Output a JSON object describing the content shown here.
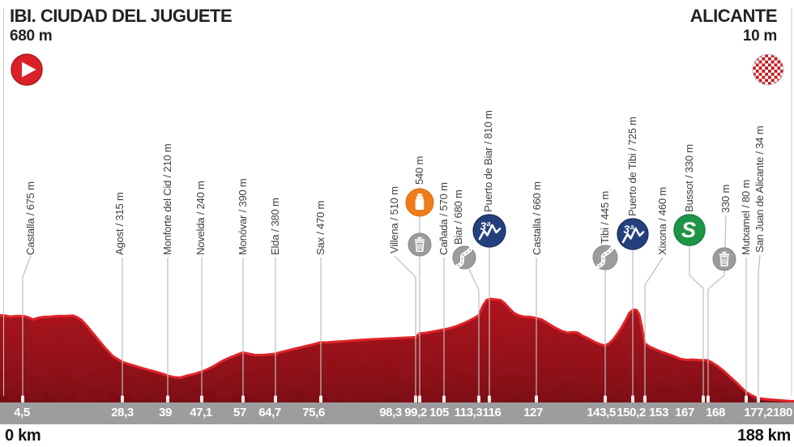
{
  "header": {
    "start": {
      "name": "IBI. CIUDAD DEL JUGUETE",
      "elevation": "680 m"
    },
    "finish": {
      "name": "ALICANTE",
      "elevation": "10 m"
    }
  },
  "footer": {
    "start_label": "0 km",
    "finish_label": "188 km"
  },
  "colors": {
    "profile_edge": "#e0242b",
    "profile_fill_top": "#c01318",
    "profile_fill_bottom": "#740a0e",
    "km_bar": "#9d9d9d",
    "connector_line": "#bdbdbd",
    "cat3_blue": "#24407e",
    "sprint_green": "#1e9447",
    "feed_orange": "#ef7c1b",
    "icon_gray": "#9c9c9c",
    "start_red": "#da2128",
    "checker_red": "#c41a1f"
  },
  "chart_data": {
    "type": "area",
    "title": "Ibi. Ciudad del Juguete - Alicante stage elevation profile",
    "x_unit": "km",
    "y_unit": "m",
    "xlim": [
      0,
      188
    ],
    "ylim": [
      0,
      810
    ],
    "total_distance_km": 188,
    "start_elevation_m": 680,
    "finish_elevation_m": 10,
    "km_ticks": [
      "4,5",
      "28,3",
      "39",
      "47,1",
      "57",
      "64,7",
      "75,6",
      "98,3",
      "99,2",
      "105",
      "113,3",
      "116",
      "127",
      "143,5",
      "150,2",
      "153",
      "167",
      "168",
      "177,2",
      "180"
    ],
    "waypoints": [
      {
        "label": "Castalla / 675 m",
        "km": 4.5,
        "elevation_m": 675,
        "icons": []
      },
      {
        "label": "Agost / 315 m",
        "km": 28.3,
        "elevation_m": 315,
        "icons": []
      },
      {
        "label": "Monforte del Cid / 210 m",
        "km": 39,
        "elevation_m": 210,
        "icons": []
      },
      {
        "label": "Novelda / 240 m",
        "km": 47.1,
        "elevation_m": 240,
        "icons": []
      },
      {
        "label": "Monóvar / 390 m",
        "km": 57,
        "elevation_m": 390,
        "icons": []
      },
      {
        "label": "Elda / 380 m",
        "km": 64.7,
        "elevation_m": 380,
        "icons": []
      },
      {
        "label": "Sax / 470 m",
        "km": 75.6,
        "elevation_m": 470,
        "icons": []
      },
      {
        "label": "Villena / 510 m",
        "km": 98.3,
        "elevation_m": 510,
        "icons": []
      },
      {
        "label": "540 m",
        "km": 99.2,
        "elevation_m": 540,
        "icons": [
          "feed-zone",
          "litter-zone"
        ]
      },
      {
        "label": "Cañada / 570 m",
        "km": 105,
        "elevation_m": 570,
        "icons": []
      },
      {
        "label": "Biar / 680 m",
        "km": 113.3,
        "elevation_m": 680,
        "icons": [
          "winding-road"
        ]
      },
      {
        "label": "Puerto de Biar / 810 m",
        "km": 116,
        "elevation_m": 810,
        "icons": [
          "category-3-climb"
        ]
      },
      {
        "label": "Castalla / 660 m",
        "km": 127,
        "elevation_m": 660,
        "icons": []
      },
      {
        "label": "Tibi / 445 m",
        "km": 143.5,
        "elevation_m": 445,
        "icons": [
          "winding-road"
        ]
      },
      {
        "label": "Puerto de Tibi / 725 m",
        "km": 150.2,
        "elevation_m": 725,
        "icons": [
          "category-3-climb"
        ]
      },
      {
        "label": "Xixona / 460 m",
        "km": 153,
        "elevation_m": 460,
        "icons": []
      },
      {
        "label": "Bussot / 330 m",
        "km": 167,
        "elevation_m": 330,
        "icons": [
          "intermediate-sprint"
        ]
      },
      {
        "label": "330 m",
        "km": 168,
        "elevation_m": 330,
        "icons": [
          "litter-zone"
        ]
      },
      {
        "label": "Mutxamel / 80 m",
        "km": 177.2,
        "elevation_m": 80,
        "icons": []
      },
      {
        "label": "San Juan de Alicante / 34 m",
        "km": 180,
        "elevation_m": 34,
        "icons": []
      }
    ],
    "profile": [
      [
        0,
        680
      ],
      [
        1.5,
        670
      ],
      [
        3,
        676
      ],
      [
        4.5,
        675
      ],
      [
        5.5,
        668
      ],
      [
        7,
        648
      ],
      [
        8,
        660
      ],
      [
        9.5,
        668
      ],
      [
        11,
        670
      ],
      [
        13,
        675
      ],
      [
        15,
        676
      ],
      [
        16.5,
        679
      ],
      [
        17.3,
        668
      ],
      [
        18.5,
        645
      ],
      [
        20,
        590
      ],
      [
        22,
        510
      ],
      [
        24,
        430
      ],
      [
        26,
        360
      ],
      [
        28.3,
        315
      ],
      [
        30,
        298
      ],
      [
        32,
        278
      ],
      [
        34,
        258
      ],
      [
        36,
        242
      ],
      [
        38,
        222
      ],
      [
        39,
        210
      ],
      [
        40.5,
        198
      ],
      [
        42,
        193
      ],
      [
        44,
        212
      ],
      [
        45.5,
        222
      ],
      [
        47.1,
        240
      ],
      [
        48.5,
        258
      ],
      [
        50,
        282
      ],
      [
        52,
        322
      ],
      [
        54,
        352
      ],
      [
        56,
        378
      ],
      [
        57,
        390
      ],
      [
        58.5,
        380
      ],
      [
        60,
        370
      ],
      [
        62,
        372
      ],
      [
        64.7,
        380
      ],
      [
        66,
        392
      ],
      [
        68,
        408
      ],
      [
        70,
        424
      ],
      [
        72,
        440
      ],
      [
        74,
        455
      ],
      [
        75.6,
        470
      ],
      [
        77,
        468
      ],
      [
        79,
        474
      ],
      [
        81,
        478
      ],
      [
        84,
        486
      ],
      [
        87,
        492
      ],
      [
        90,
        497
      ],
      [
        93,
        502
      ],
      [
        96,
        506
      ],
      [
        98.3,
        510
      ],
      [
        99.2,
        540
      ],
      [
        100.5,
        543
      ],
      [
        102,
        551
      ],
      [
        103.5,
        560
      ],
      [
        105,
        570
      ],
      [
        106.5,
        580
      ],
      [
        108,
        596
      ],
      [
        110,
        622
      ],
      [
        112,
        655
      ],
      [
        113.3,
        680
      ],
      [
        114.3,
        755
      ],
      [
        115.2,
        800
      ],
      [
        116,
        810
      ],
      [
        117,
        806
      ],
      [
        118.5,
        800
      ],
      [
        119.5,
        775
      ],
      [
        120.5,
        740
      ],
      [
        121.5,
        705
      ],
      [
        122.5,
        685
      ],
      [
        124,
        670
      ],
      [
        125.5,
        668
      ],
      [
        127,
        660
      ],
      [
        128.5,
        645
      ],
      [
        130,
        615
      ],
      [
        131.5,
        585
      ],
      [
        133,
        560
      ],
      [
        134.5,
        545
      ],
      [
        136,
        550
      ],
      [
        137,
        545
      ],
      [
        138,
        522
      ],
      [
        139.5,
        500
      ],
      [
        141,
        472
      ],
      [
        142.5,
        452
      ],
      [
        143.5,
        445
      ],
      [
        144.5,
        462
      ],
      [
        145.5,
        495
      ],
      [
        146.5,
        540
      ],
      [
        147.5,
        590
      ],
      [
        148.5,
        650
      ],
      [
        149.3,
        700
      ],
      [
        150.2,
        725
      ],
      [
        151,
        722
      ],
      [
        151.6,
        690
      ],
      [
        152.2,
        600
      ],
      [
        153,
        460
      ],
      [
        154,
        438
      ],
      [
        155.5,
        415
      ],
      [
        157,
        395
      ],
      [
        158.5,
        378
      ],
      [
        160,
        360
      ],
      [
        161.5,
        340
      ],
      [
        163,
        332
      ],
      [
        164.5,
        335
      ],
      [
        166,
        331
      ],
      [
        167,
        330
      ],
      [
        168,
        330
      ],
      [
        169,
        312
      ],
      [
        170.5,
        280
      ],
      [
        172,
        240
      ],
      [
        173.5,
        195
      ],
      [
        175,
        150
      ],
      [
        176.2,
        110
      ],
      [
        177.2,
        80
      ],
      [
        178.3,
        58
      ],
      [
        179.2,
        44
      ],
      [
        180,
        34
      ],
      [
        181.5,
        27
      ],
      [
        183,
        22
      ],
      [
        185,
        17
      ],
      [
        187,
        12
      ],
      [
        188,
        10
      ]
    ]
  }
}
